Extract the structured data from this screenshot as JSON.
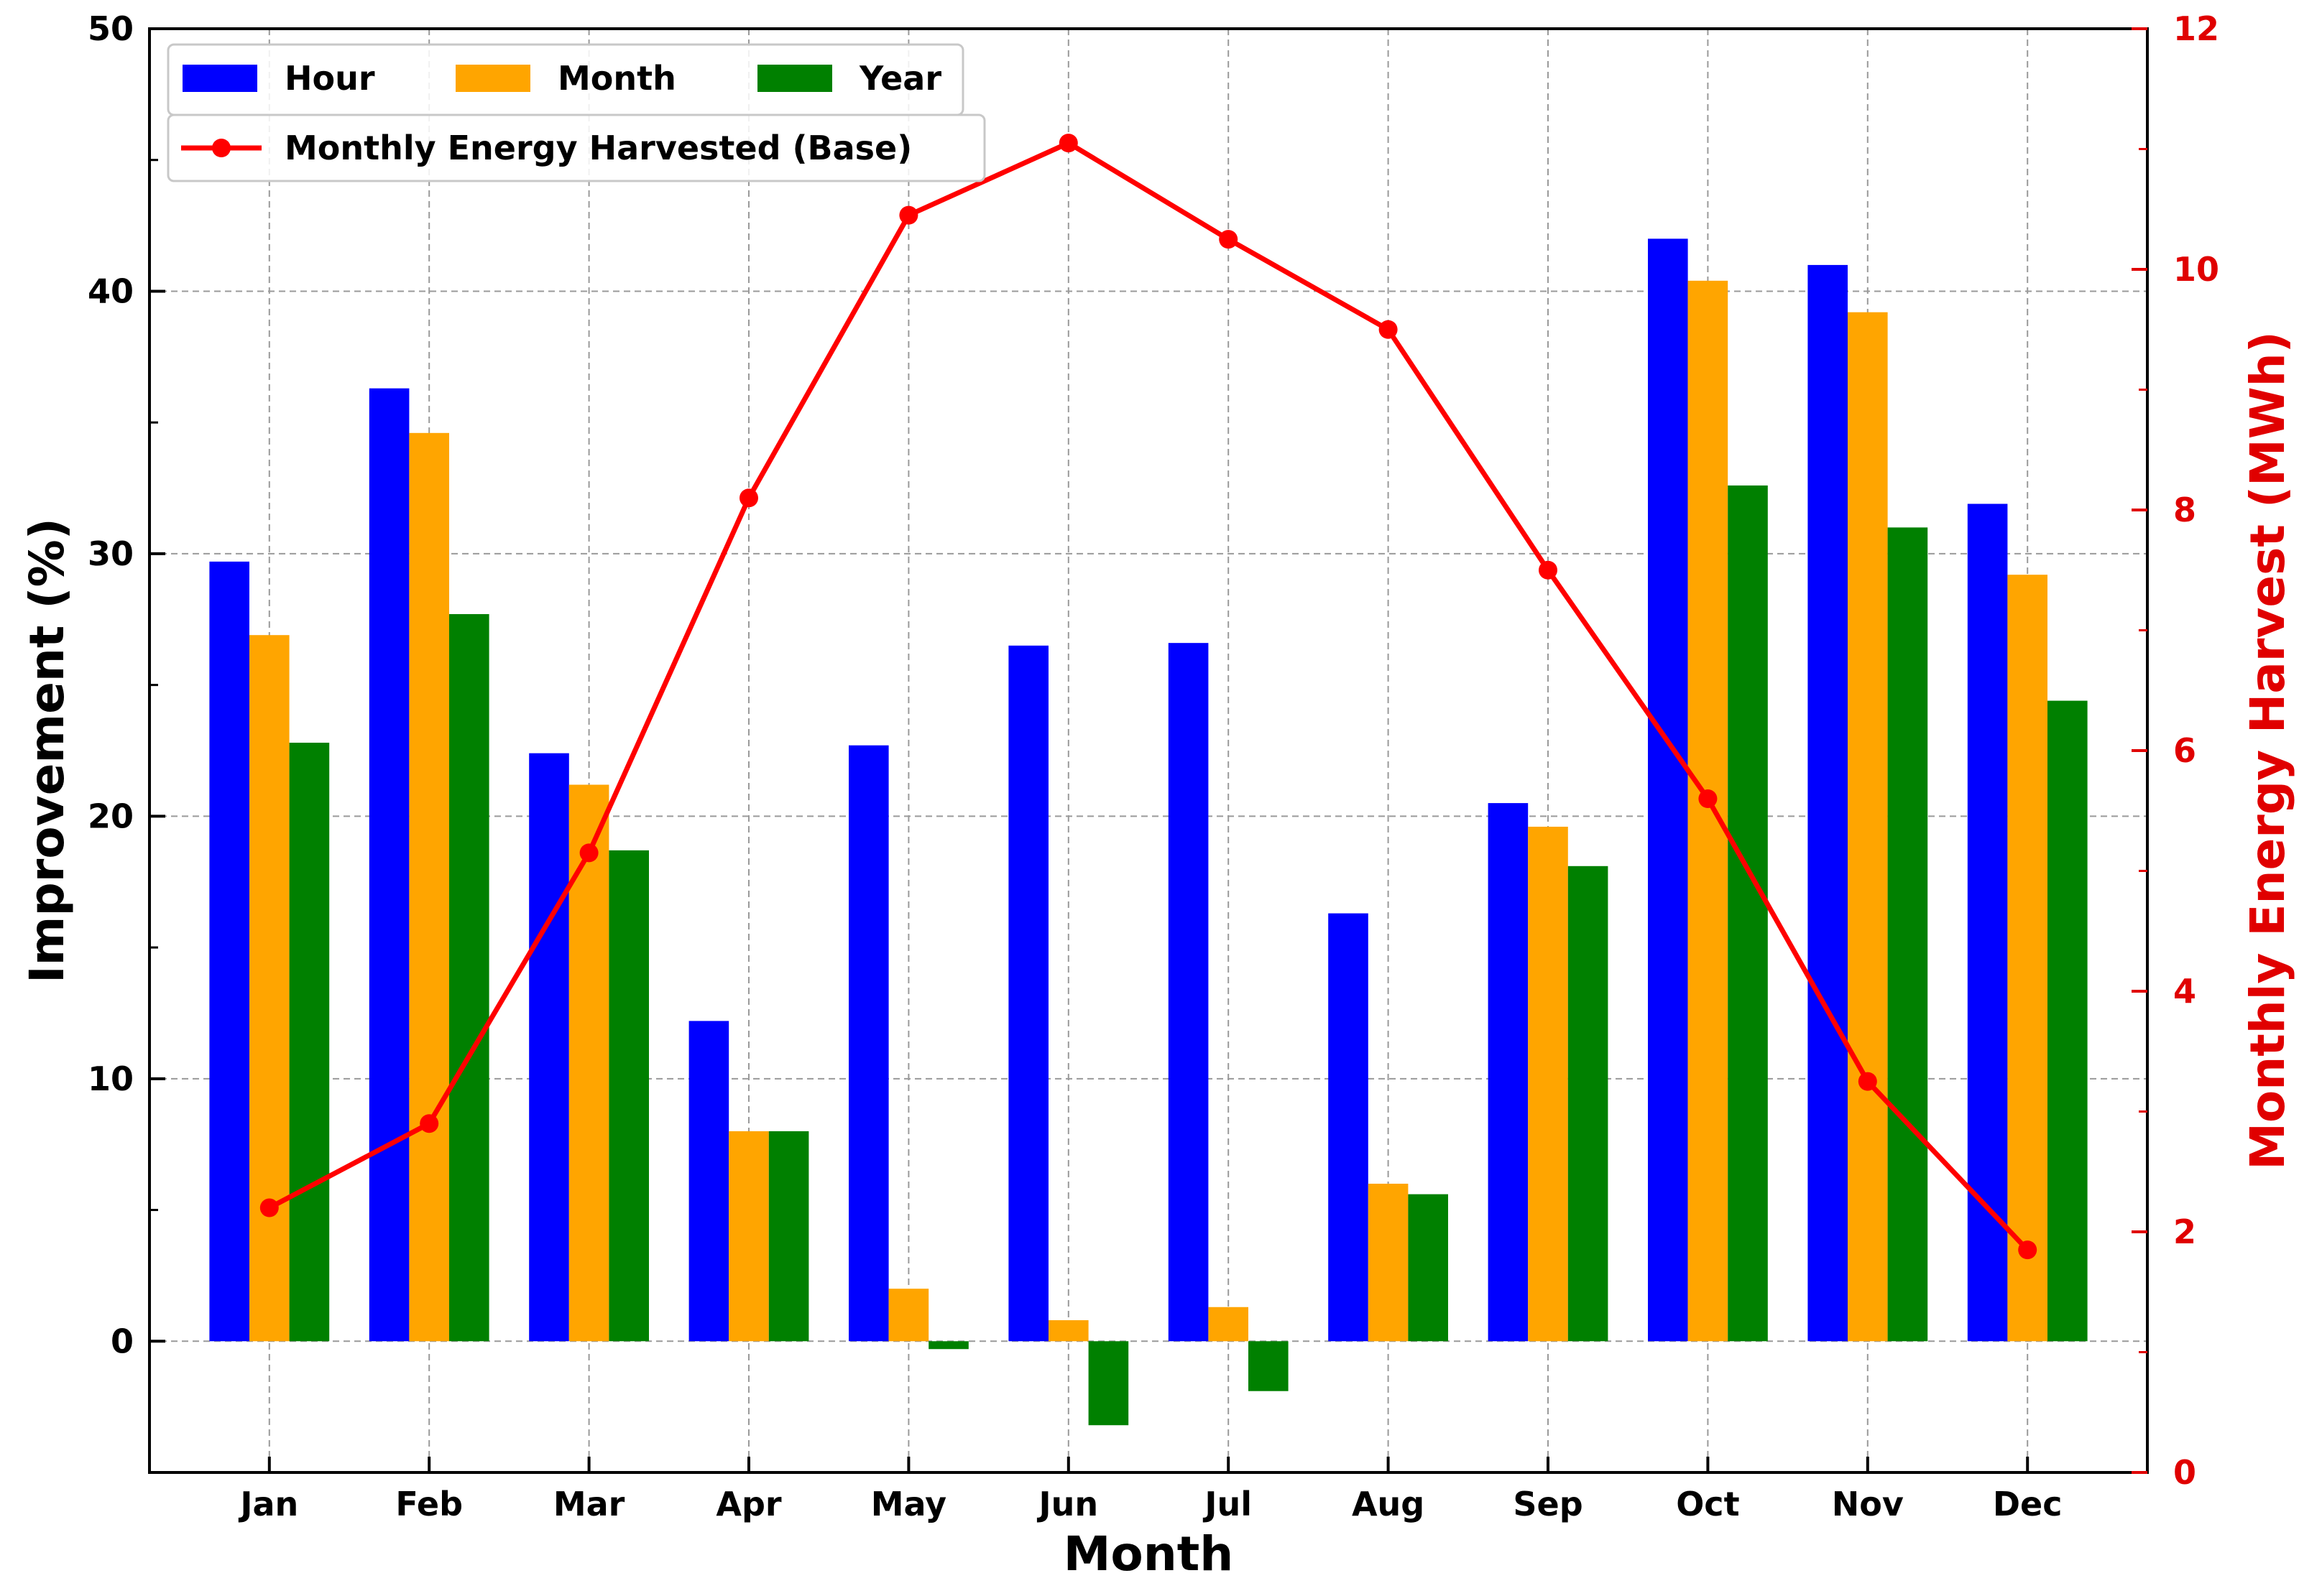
{
  "chart_data": {
    "type": "bar+line",
    "categories": [
      "Jan",
      "Feb",
      "Mar",
      "Apr",
      "May",
      "Jun",
      "Jul",
      "Aug",
      "Sep",
      "Oct",
      "Nov",
      "Dec"
    ],
    "series": [
      {
        "name": "Hour",
        "axis": "left",
        "color": "#0000ff",
        "values": [
          29.7,
          36.3,
          22.4,
          12.2,
          22.7,
          26.5,
          26.6,
          16.3,
          20.5,
          42.0,
          41.0,
          31.9
        ]
      },
      {
        "name": "Month",
        "axis": "left",
        "color": "#ffa500",
        "values": [
          26.9,
          34.6,
          21.2,
          8.0,
          2.0,
          0.8,
          1.3,
          6.0,
          19.6,
          40.4,
          39.2,
          29.2
        ]
      },
      {
        "name": "Year",
        "axis": "left",
        "color": "#008000",
        "values": [
          22.8,
          27.7,
          18.7,
          8.0,
          -0.3,
          -3.2,
          -1.9,
          5.6,
          18.1,
          32.6,
          31.0,
          24.4
        ]
      }
    ],
    "line": {
      "name": "Monthly Energy Harvested (Base)",
      "axis": "right",
      "color": "#ff0000",
      "values": [
        2.2,
        2.9,
        5.15,
        8.1,
        10.45,
        11.05,
        10.25,
        9.5,
        7.5,
        5.6,
        3.25,
        1.85
      ]
    },
    "xlabel": "Month",
    "ylabel": "Improvement (%)",
    "y2label": "Monthly Energy Harvest (MWh)",
    "ylim": [
      -5,
      50
    ],
    "y2lim": [
      0,
      12
    ],
    "yticks": [
      0,
      10,
      20,
      30,
      40,
      50
    ],
    "y2ticks": [
      0,
      2,
      4,
      6,
      8,
      10,
      12
    ],
    "grid": true,
    "legend_rows": [
      [
        "Hour",
        "Month",
        "Year"
      ],
      [
        "Monthly Energy Harvested (Base)"
      ]
    ],
    "legend_position": "top-left"
  }
}
